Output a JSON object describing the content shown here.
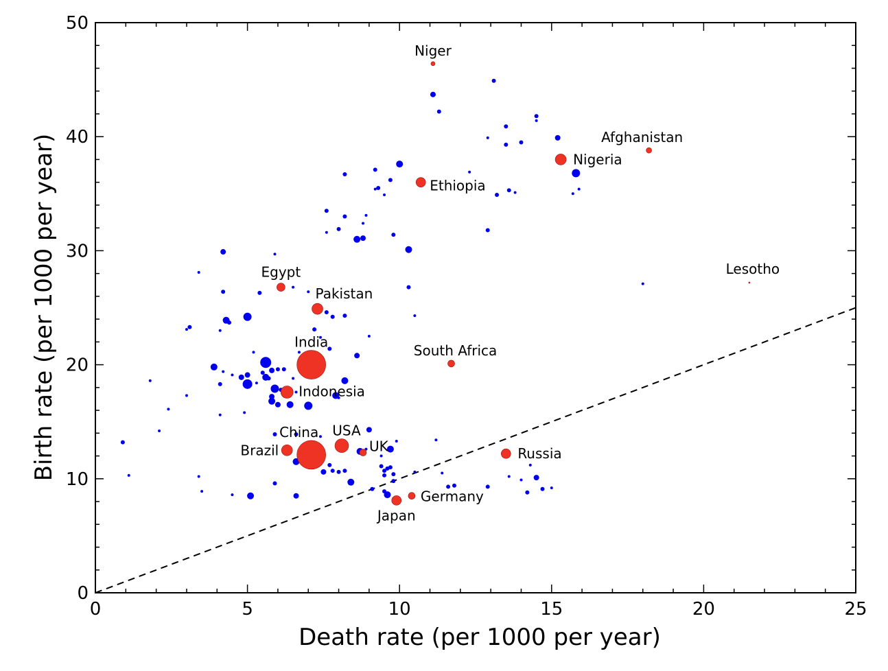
{
  "chart_data": {
    "type": "scatter",
    "title": "",
    "xlabel": "Death rate (per 1000 per year)",
    "ylabel": "Birth rate (per 1000 per year)",
    "xlim": [
      0,
      25
    ],
    "ylim": [
      0,
      50
    ],
    "xticks": [
      0,
      5,
      10,
      15,
      20,
      25
    ],
    "yticks": [
      0,
      10,
      20,
      30,
      40,
      50
    ],
    "grid": false,
    "reference_line": {
      "style": "dashed",
      "slope": 1,
      "intercept": 0,
      "color": "#000000"
    },
    "colors": {
      "highlighted": "#ee3224",
      "other": "#0000ee"
    },
    "labeled_points": [
      {
        "label": "Niger",
        "x": 11.1,
        "y": 46.4,
        "r": 3
      },
      {
        "label": "Afghanistan",
        "x": 18.2,
        "y": 38.8,
        "r": 4
      },
      {
        "label": "Nigeria",
        "x": 15.3,
        "y": 38.0,
        "r": 8
      },
      {
        "label": "Ethiopia",
        "x": 10.7,
        "y": 36.0,
        "r": 7
      },
      {
        "label": "Lesotho",
        "x": 21.5,
        "y": 27.2,
        "r": 1
      },
      {
        "label": "Egypt",
        "x": 6.1,
        "y": 26.8,
        "r": 6
      },
      {
        "label": "Pakistan",
        "x": 7.3,
        "y": 24.9,
        "r": 8
      },
      {
        "label": "India",
        "x": 7.1,
        "y": 20.0,
        "r": 21
      },
      {
        "label": "South Africa",
        "x": 11.7,
        "y": 20.1,
        "r": 5
      },
      {
        "label": "Indonesia",
        "x": 6.3,
        "y": 17.6,
        "r": 9
      },
      {
        "label": "China",
        "x": 7.1,
        "y": 12.1,
        "r": 21
      },
      {
        "label": "Brazil",
        "x": 6.3,
        "y": 12.5,
        "r": 8
      },
      {
        "label": "USA",
        "x": 8.1,
        "y": 12.9,
        "r": 10
      },
      {
        "label": "UK",
        "x": 8.8,
        "y": 12.3,
        "r": 5
      },
      {
        "label": "Russia",
        "x": 13.5,
        "y": 12.2,
        "r": 7
      },
      {
        "label": "Germany",
        "x": 10.4,
        "y": 8.5,
        "r": 5
      },
      {
        "label": "Japan",
        "x": 9.9,
        "y": 8.1,
        "r": 7
      }
    ],
    "other_points": [
      [
        11.1,
        43.7,
        4
      ],
      [
        13.1,
        44.9,
        3
      ],
      [
        11.3,
        42.2,
        3
      ],
      [
        14.5,
        41.8,
        3
      ],
      [
        14.5,
        41.4,
        2
      ],
      [
        13.5,
        40.9,
        3
      ],
      [
        12.9,
        39.9,
        2
      ],
      [
        15.2,
        39.9,
        4
      ],
      [
        14.0,
        39.5,
        3
      ],
      [
        13.5,
        39.3,
        3
      ],
      [
        10.0,
        37.6,
        5
      ],
      [
        15.8,
        36.8,
        6
      ],
      [
        9.2,
        37.1,
        3
      ],
      [
        12.3,
        36.9,
        2
      ],
      [
        8.2,
        36.7,
        3
      ],
      [
        9.3,
        35.5,
        3
      ],
      [
        9.2,
        35.4,
        2
      ],
      [
        9.7,
        36.2,
        3
      ],
      [
        13.6,
        35.3,
        3
      ],
      [
        13.8,
        35.1,
        2
      ],
      [
        13.2,
        34.9,
        3
      ],
      [
        9.5,
        34.9,
        2
      ],
      [
        15.9,
        35.4,
        2
      ],
      [
        15.7,
        35.0,
        2
      ],
      [
        7.6,
        33.5,
        3
      ],
      [
        8.2,
        33.0,
        3
      ],
      [
        8.0,
        31.9,
        3
      ],
      [
        8.9,
        33.1,
        2
      ],
      [
        8.8,
        32.4,
        2
      ],
      [
        9.8,
        31.4,
        3
      ],
      [
        8.6,
        31.0,
        5
      ],
      [
        8.8,
        31.1,
        4
      ],
      [
        7.6,
        31.6,
        2
      ],
      [
        12.9,
        31.8,
        3
      ],
      [
        10.3,
        30.1,
        5
      ],
      [
        4.2,
        29.9,
        4
      ],
      [
        5.9,
        29.7,
        2
      ],
      [
        3.4,
        28.1,
        2
      ],
      [
        6.5,
        26.8,
        2
      ],
      [
        4.2,
        26.4,
        3
      ],
      [
        5.4,
        26.3,
        3
      ],
      [
        7.0,
        26.4,
        2
      ],
      [
        10.3,
        26.8,
        3
      ],
      [
        4.3,
        23.9,
        5
      ],
      [
        4.4,
        23.7,
        3
      ],
      [
        5.0,
        24.2,
        6
      ],
      [
        7.6,
        24.6,
        3
      ],
      [
        7.8,
        24.2,
        3
      ],
      [
        8.2,
        24.3,
        3
      ],
      [
        10.5,
        24.3,
        2
      ],
      [
        3.1,
        23.3,
        3
      ],
      [
        3.0,
        23.1,
        2
      ],
      [
        4.1,
        23.0,
        2
      ],
      [
        7.2,
        23.1,
        3
      ],
      [
        7.4,
        22.4,
        2
      ],
      [
        9.0,
        22.5,
        2
      ],
      [
        5.2,
        21.1,
        2
      ],
      [
        6.7,
        21.1,
        2
      ],
      [
        7.7,
        21.4,
        3
      ],
      [
        8.6,
        20.8,
        4
      ],
      [
        3.9,
        19.8,
        5
      ],
      [
        5.6,
        20.2,
        8
      ],
      [
        5.8,
        19.5,
        4
      ],
      [
        6.0,
        19.6,
        3
      ],
      [
        6.2,
        19.6,
        3
      ],
      [
        5.5,
        19.3,
        3
      ],
      [
        4.2,
        19.4,
        2
      ],
      [
        4.5,
        19.1,
        2
      ],
      [
        4.8,
        18.9,
        4
      ],
      [
        5.0,
        19.1,
        4
      ],
      [
        5.6,
        18.9,
        5
      ],
      [
        5.7,
        18.8,
        3
      ],
      [
        6.5,
        18.8,
        2
      ],
      [
        4.1,
        18.3,
        3
      ],
      [
        5.0,
        18.3,
        7
      ],
      [
        5.9,
        17.9,
        6
      ],
      [
        6.1,
        17.8,
        3
      ],
      [
        6.6,
        17.6,
        2
      ],
      [
        7.9,
        17.3,
        5
      ],
      [
        8.2,
        18.6,
        5
      ],
      [
        5.8,
        17.2,
        4
      ],
      [
        5.8,
        16.8,
        5
      ],
      [
        6.0,
        16.5,
        4
      ],
      [
        6.4,
        16.5,
        5
      ],
      [
        7.0,
        16.4,
        6
      ],
      [
        8.0,
        17.1,
        2
      ],
      [
        1.8,
        18.6,
        2
      ],
      [
        4.1,
        15.6,
        2
      ],
      [
        4.9,
        15.8,
        2
      ],
      [
        3.0,
        17.3,
        2
      ],
      [
        5.3,
        18.4,
        2
      ],
      [
        9.0,
        14.3,
        4
      ],
      [
        5.9,
        13.9,
        3
      ],
      [
        6.6,
        13.9,
        3
      ],
      [
        7.4,
        13.7,
        2
      ],
      [
        11.2,
        13.4,
        2
      ],
      [
        0.9,
        13.2,
        3
      ],
      [
        2.1,
        14.2,
        2
      ],
      [
        9.9,
        13.3,
        2
      ],
      [
        8.7,
        12.4,
        5
      ],
      [
        9.4,
        12.0,
        2
      ],
      [
        8.9,
        12.6,
        2
      ],
      [
        9.7,
        12.6,
        5
      ],
      [
        6.6,
        11.5,
        5
      ],
      [
        7.0,
        11.6,
        3
      ],
      [
        7.7,
        11.2,
        3
      ],
      [
        9.4,
        11.1,
        3
      ],
      [
        9.7,
        11.0,
        3
      ],
      [
        9.6,
        10.9,
        3
      ],
      [
        9.5,
        10.7,
        3
      ],
      [
        7.5,
        10.6,
        4
      ],
      [
        7.8,
        10.7,
        3
      ],
      [
        8.0,
        10.6,
        3
      ],
      [
        8.2,
        10.7,
        3
      ],
      [
        8.4,
        9.7,
        5
      ],
      [
        9.5,
        10.3,
        3
      ],
      [
        9.8,
        10.4,
        3
      ],
      [
        10.5,
        10.6,
        2
      ],
      [
        11.4,
        10.5,
        2
      ],
      [
        12.9,
        9.3,
        3
      ],
      [
        1.1,
        10.3,
        2
      ],
      [
        3.4,
        10.2,
        2
      ],
      [
        5.9,
        9.6,
        3
      ],
      [
        9.1,
        9.1,
        3
      ],
      [
        9.5,
        8.9,
        3
      ],
      [
        9.6,
        8.6,
        5
      ],
      [
        9.8,
        9.8,
        3
      ],
      [
        11.6,
        9.3,
        3
      ],
      [
        11.8,
        9.4,
        3
      ],
      [
        14.5,
        10.1,
        4
      ],
      [
        14.2,
        8.8,
        3
      ],
      [
        14.7,
        9.1,
        3
      ],
      [
        14.3,
        11.2,
        2
      ],
      [
        14.0,
        9.9,
        2
      ],
      [
        13.6,
        10.2,
        2
      ],
      [
        15.0,
        9.2,
        2
      ],
      [
        5.1,
        8.5,
        5
      ],
      [
        4.5,
        8.6,
        2
      ],
      [
        6.6,
        8.5,
        4
      ],
      [
        3.5,
        8.9,
        2
      ],
      [
        18.0,
        27.1,
        2
      ],
      [
        2.4,
        16.1,
        2
      ]
    ]
  }
}
